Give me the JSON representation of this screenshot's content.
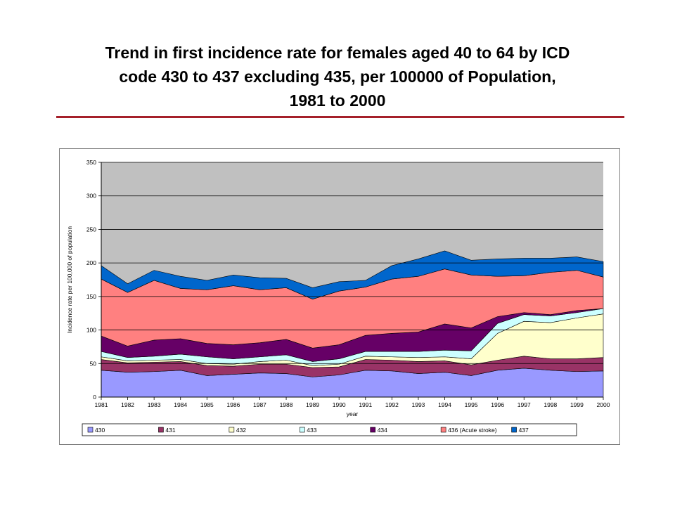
{
  "slide": {
    "title_lines": [
      "Trend in first incidence rate for females aged 40 to 64 by ICD",
      "code 430 to 437 excluding 435, per 100000 of Population,",
      "1981 to 2000"
    ]
  },
  "colors": {
    "plot_background": "#c0c0c0",
    "gridline": "#000000",
    "title_rule": "#a5202a"
  },
  "chart_data": {
    "type": "area",
    "stacked": true,
    "title": "",
    "xlabel": "year",
    "ylabel": "Incidence rate per 100,000 of population",
    "ylim": [
      0,
      350
    ],
    "yticks": [
      0,
      50,
      100,
      150,
      200,
      250,
      300,
      350
    ],
    "grid": true,
    "legend_position": "bottom",
    "x": [
      "1981",
      "1982",
      "1983",
      "1984",
      "1985",
      "1986",
      "1987",
      "1988",
      "1989",
      "1990",
      "1991",
      "1992",
      "1993",
      "1994",
      "1995",
      "1996",
      "1997",
      "1998",
      "1999",
      "2000"
    ],
    "series": [
      {
        "name": "430",
        "color": "#9999ff",
        "values": [
          40,
          37,
          38,
          40,
          32,
          34,
          36,
          35,
          30,
          33,
          40,
          39,
          35,
          37,
          32,
          40,
          43,
          40,
          38,
          39
        ]
      },
      {
        "name": "431",
        "color": "#993366",
        "values": [
          16,
          14,
          14,
          13,
          15,
          12,
          13,
          14,
          14,
          12,
          16,
          16,
          18,
          17,
          16,
          15,
          18,
          17,
          19,
          20
        ]
      },
      {
        "name": "432",
        "color": "#ffffcc",
        "values": [
          4,
          3,
          3,
          3,
          3,
          3,
          4,
          6,
          3,
          4,
          5,
          5,
          6,
          6,
          9,
          40,
          52,
          54,
          61,
          65
        ]
      },
      {
        "name": "433",
        "color": "#ccffff",
        "values": [
          8,
          5,
          6,
          8,
          10,
          8,
          7,
          8,
          6,
          8,
          7,
          8,
          9,
          10,
          12,
          15,
          10,
          10,
          8,
          8
        ]
      },
      {
        "name": "434",
        "color": "#660066",
        "values": [
          23,
          17,
          24,
          23,
          20,
          21,
          21,
          23,
          20,
          21,
          24,
          27,
          29,
          39,
          34,
          10,
          3,
          2,
          3,
          0
        ]
      },
      {
        "name": "436 (Acute stroke)",
        "color": "#ff8080",
        "values": [
          85,
          80,
          89,
          75,
          80,
          88,
          79,
          77,
          73,
          80,
          72,
          81,
          83,
          82,
          79,
          60,
          55,
          63,
          60,
          47
        ]
      },
      {
        "name": "437",
        "color": "#0066cc",
        "values": [
          20,
          13,
          15,
          18,
          14,
          16,
          18,
          14,
          17,
          14,
          10,
          20,
          26,
          27,
          22,
          26,
          26,
          21,
          20,
          23
        ]
      }
    ]
  }
}
